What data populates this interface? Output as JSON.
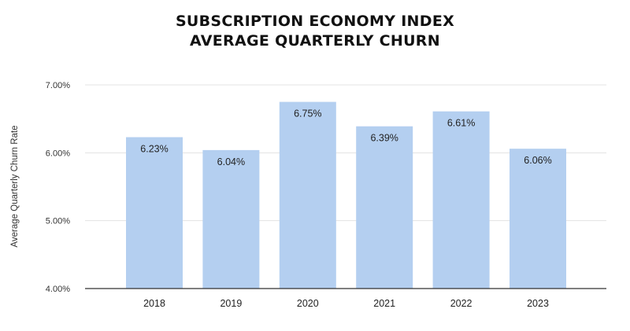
{
  "chart_data": {
    "type": "bar",
    "title": "SUBSCRIPTION ECONOMY INDEX",
    "subtitle": "AVERAGE QUARTERLY CHURN",
    "xlabel": "",
    "ylabel": "Average Quarterly Churn Rate",
    "categories": [
      "2018",
      "2019",
      "2020",
      "2021",
      "2022",
      "2023"
    ],
    "values": [
      6.23,
      6.04,
      6.75,
      6.39,
      6.61,
      6.06
    ],
    "data_labels": [
      "6.23%",
      "6.04%",
      "6.75%",
      "6.39%",
      "6.61%",
      "6.06%"
    ],
    "ylim": [
      4.0,
      7.0
    ],
    "yticks": [
      4.0,
      5.0,
      6.0,
      7.0
    ],
    "ytick_labels": [
      "4.00%",
      "5.00%",
      "6.00%",
      "7.00%"
    ],
    "grid": true,
    "legend": "none",
    "bar_color": "#b4cff0"
  }
}
